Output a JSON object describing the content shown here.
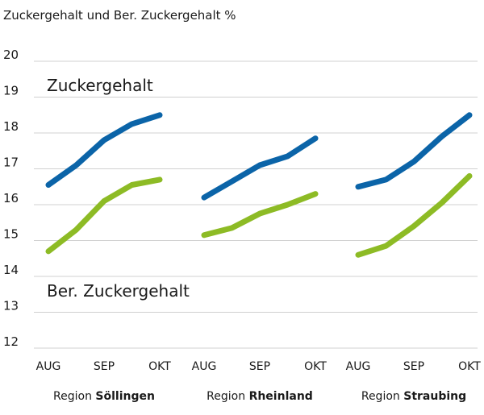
{
  "chart_data": {
    "type": "line",
    "title": "Zuckergehalt und Ber. Zuckergehalt %",
    "ylim": [
      12,
      20
    ],
    "yticks": [
      12,
      13,
      14,
      15,
      16,
      17,
      18,
      19,
      20
    ],
    "grid": true,
    "x": [
      "AUG",
      "",
      "SEP",
      "",
      "OKT"
    ],
    "xtick_labels": [
      "AUG",
      "SEP",
      "OKT"
    ],
    "panels": [
      {
        "region_prefix": "Region ",
        "region_name": "Söllingen",
        "series": [
          {
            "name": "Zuckergehalt",
            "values": [
              16.55,
              17.1,
              17.8,
              18.25,
              18.5
            ]
          },
          {
            "name": "Ber. Zuckergehalt",
            "values": [
              14.7,
              15.3,
              16.1,
              16.55,
              16.7
            ]
          }
        ]
      },
      {
        "region_prefix": "Region ",
        "region_name": "Rheinland",
        "series": [
          {
            "name": "Zuckergehalt",
            "values": [
              16.2,
              16.65,
              17.1,
              17.35,
              17.85
            ]
          },
          {
            "name": "Ber. Zuckergehalt",
            "values": [
              15.15,
              15.35,
              15.75,
              16.0,
              16.3
            ]
          }
        ]
      },
      {
        "region_prefix": "Region ",
        "region_name": "Straubing",
        "series": [
          {
            "name": "Zuckergehalt",
            "values": [
              16.5,
              16.7,
              17.2,
              17.9,
              18.5
            ]
          },
          {
            "name": "Ber. Zuckergehalt",
            "values": [
              14.6,
              14.85,
              15.4,
              16.05,
              16.8
            ]
          }
        ]
      }
    ],
    "series_labels": {
      "zuckergehalt": "Zuckergehalt",
      "ber_zuckergehalt": "Ber. Zuckergehalt"
    },
    "colors": {
      "zuckergehalt": "#0b64a8",
      "ber_zuckergehalt": "#8dbb25"
    }
  }
}
